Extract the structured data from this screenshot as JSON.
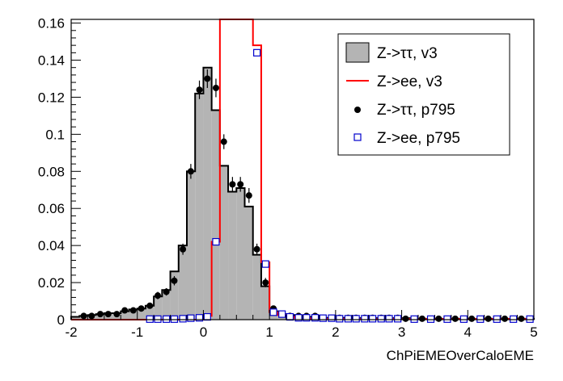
{
  "chart_data": {
    "type": "histogram",
    "xlabel": "ChPiEMEOverCaloEME",
    "ylabel": "",
    "xlim": [
      -2,
      5
    ],
    "ylim": [
      0,
      0.162
    ],
    "x_ticks": [
      -2,
      -1,
      0,
      1,
      2,
      3,
      4,
      5
    ],
    "x_tick_labels": [
      "-2",
      "-1",
      "0",
      "1",
      "2",
      "3",
      "4",
      "5"
    ],
    "y_ticks": [
      0,
      0.02,
      0.04,
      0.06,
      0.08,
      0.1,
      0.12,
      0.14,
      0.16
    ],
    "y_tick_labels": [
      "0",
      "0.02",
      "0.04",
      "0.06",
      "0.08",
      "0.1",
      "0.12",
      "0.14",
      "0.16"
    ],
    "bin_edges": [
      -2.0,
      -1.875,
      -1.75,
      -1.625,
      -1.5,
      -1.375,
      -1.25,
      -1.125,
      -1.0,
      -0.875,
      -0.75,
      -0.625,
      -0.5,
      -0.375,
      -0.25,
      -0.125,
      0.0,
      0.125,
      0.25,
      0.375,
      0.5,
      0.625,
      0.75,
      0.875,
      1.0,
      1.125,
      1.25,
      1.375,
      1.5,
      1.625,
      1.75,
      1.875,
      2.0,
      2.125,
      2.25,
      2.375,
      2.5,
      2.625,
      2.75,
      2.875,
      3.0,
      3.125,
      3.25,
      3.375,
      3.5,
      3.625,
      3.75,
      3.875,
      4.0,
      4.125,
      4.25,
      4.375,
      4.5,
      4.625,
      4.75,
      4.875,
      5.0
    ],
    "legend_position": "top-right",
    "series": [
      {
        "name": "Z->ττ, v3",
        "style": "filled-histogram",
        "fill_color": "#b4b4b4",
        "line_color": "#000000",
        "values": [
          0.0015,
          0.002,
          0.0025,
          0.003,
          0.0035,
          0.0035,
          0.0045,
          0.0055,
          0.006,
          0.0075,
          0.0125,
          0.016,
          0.026,
          0.04,
          0.08,
          0.122,
          0.136,
          0.113,
          0.083,
          0.069,
          0.071,
          0.061,
          0.035,
          0.018,
          0.0045,
          0.003,
          0.0025,
          0.002,
          0.0015,
          0.0015,
          0.001,
          0.001,
          0.001,
          0.0008,
          0.0008,
          0.0008,
          0.0008,
          0.0008,
          0.0008,
          0.0008,
          0.0008,
          0.0005,
          0.0005,
          0.0005,
          0.0005,
          0.0005,
          0.0005,
          0.0005,
          0.0005,
          0.0005,
          0.0005,
          0.0005,
          0.0005,
          0.0005,
          0.0005,
          0.0005
        ]
      },
      {
        "name": "Z->ee, v3",
        "style": "line-histogram",
        "line_color": "#ff0000",
        "values": [
          0,
          0,
          0,
          0,
          0,
          0,
          0,
          0,
          0,
          0,
          0,
          0,
          0,
          0,
          0,
          0,
          0.002,
          0.042,
          0.165,
          0.165,
          0.165,
          0.165,
          0.148,
          0.031,
          0.004,
          0.0025,
          0.0015,
          0.001,
          0.0008,
          0.0005,
          0.0005,
          0.0005,
          0.0005,
          0.0003,
          0.0003,
          0.0003,
          0.0003,
          0.0003,
          0.0003,
          0.0003,
          0.0003,
          0.0003,
          0.0003,
          0.0003,
          0.0003,
          0.0003,
          0.0003,
          0.0003,
          0.0003,
          0.0003,
          0.0003,
          0.0003,
          0.0003,
          0.0003,
          0.0003,
          0.0003
        ]
      },
      {
        "name": "Z->ττ, p795",
        "style": "markers-filled-circle",
        "color": "#000000",
        "points": [
          {
            "x": -1.81,
            "y": 0.002,
            "err": 0.001
          },
          {
            "x": -1.69,
            "y": 0.002,
            "err": 0.001
          },
          {
            "x": -1.56,
            "y": 0.003,
            "err": 0.001
          },
          {
            "x": -1.44,
            "y": 0.003,
            "err": 0.001
          },
          {
            "x": -1.31,
            "y": 0.003,
            "err": 0.001
          },
          {
            "x": -1.19,
            "y": 0.005,
            "err": 0.0012
          },
          {
            "x": -1.06,
            "y": 0.005,
            "err": 0.0012
          },
          {
            "x": -0.94,
            "y": 0.006,
            "err": 0.0015
          },
          {
            "x": -0.81,
            "y": 0.0075,
            "err": 0.0015
          },
          {
            "x": -0.69,
            "y": 0.013,
            "err": 0.002
          },
          {
            "x": -0.56,
            "y": 0.015,
            "err": 0.002
          },
          {
            "x": -0.44,
            "y": 0.021,
            "err": 0.0025
          },
          {
            "x": -0.31,
            "y": 0.038,
            "err": 0.003
          },
          {
            "x": -0.19,
            "y": 0.08,
            "err": 0.004
          },
          {
            "x": -0.06,
            "y": 0.124,
            "err": 0.005
          },
          {
            "x": 0.06,
            "y": 0.13,
            "err": 0.005
          },
          {
            "x": 0.19,
            "y": 0.125,
            "err": 0.005
          },
          {
            "x": 0.31,
            "y": 0.096,
            "err": 0.004
          },
          {
            "x": 0.44,
            "y": 0.073,
            "err": 0.004
          },
          {
            "x": 0.56,
            "y": 0.073,
            "err": 0.004
          },
          {
            "x": 0.69,
            "y": 0.067,
            "err": 0.004
          },
          {
            "x": 0.81,
            "y": 0.038,
            "err": 0.003
          },
          {
            "x": 0.94,
            "y": 0.02,
            "err": 0.0025
          },
          {
            "x": 1.06,
            "y": 0.006,
            "err": 0.0015
          },
          {
            "x": 1.19,
            "y": 0.003,
            "err": 0.001
          },
          {
            "x": 1.31,
            "y": 0.002,
            "err": 0.001
          },
          {
            "x": 1.44,
            "y": 0.002,
            "err": 0.001
          },
          {
            "x": 1.56,
            "y": 0.002,
            "err": 0.001
          },
          {
            "x": 1.69,
            "y": 0.002,
            "err": 0.001
          },
          {
            "x": 1.81,
            "y": 0.001,
            "err": 0.0008
          },
          {
            "x": 1.94,
            "y": 0.001,
            "err": 0.0008
          },
          {
            "x": 2.06,
            "y": 0.001,
            "err": 0.0008
          },
          {
            "x": 2.19,
            "y": 0.001,
            "err": 0.0008
          },
          {
            "x": 2.31,
            "y": 0.001,
            "err": 0.0008
          },
          {
            "x": 2.44,
            "y": 0.001,
            "err": 0.0008
          },
          {
            "x": 2.56,
            "y": 0.001,
            "err": 0.0008
          },
          {
            "x": 2.69,
            "y": 0.001,
            "err": 0.0008
          },
          {
            "x": 2.81,
            "y": 0.001,
            "err": 0.0008
          },
          {
            "x": 2.94,
            "y": 0.001,
            "err": 0.0008
          },
          {
            "x": 3.06,
            "y": 0.0005,
            "err": 0.0006
          },
          {
            "x": 3.31,
            "y": 0.0005,
            "err": 0.0006
          },
          {
            "x": 3.56,
            "y": 0.0005,
            "err": 0.0006
          },
          {
            "x": 3.81,
            "y": 0.0005,
            "err": 0.0006
          },
          {
            "x": 4.06,
            "y": 0.0005,
            "err": 0.0006
          },
          {
            "x": 4.31,
            "y": 0.0005,
            "err": 0.0006
          },
          {
            "x": 4.56,
            "y": 0.0005,
            "err": 0.0006
          },
          {
            "x": 4.81,
            "y": 0.0005,
            "err": 0.0006
          }
        ]
      },
      {
        "name": "Z->ee, p795",
        "style": "markers-open-square",
        "color": "#0000cc",
        "points": [
          {
            "x": -0.81,
            "y": 0.0003
          },
          {
            "x": -0.69,
            "y": 0.0003
          },
          {
            "x": -0.56,
            "y": 0.0003
          },
          {
            "x": -0.44,
            "y": 0.0003
          },
          {
            "x": -0.31,
            "y": 0.0005
          },
          {
            "x": -0.19,
            "y": 0.0008
          },
          {
            "x": -0.06,
            "y": 0.001
          },
          {
            "x": 0.06,
            "y": 0.0015
          },
          {
            "x": 0.19,
            "y": 0.042
          },
          {
            "x": 0.81,
            "y": 0.144
          },
          {
            "x": 0.94,
            "y": 0.03
          },
          {
            "x": 1.06,
            "y": 0.004
          },
          {
            "x": 1.19,
            "y": 0.003
          },
          {
            "x": 1.31,
            "y": 0.0015
          },
          {
            "x": 1.44,
            "y": 0.001
          },
          {
            "x": 1.56,
            "y": 0.001
          },
          {
            "x": 1.69,
            "y": 0.001
          },
          {
            "x": 1.81,
            "y": 0.0008
          },
          {
            "x": 1.94,
            "y": 0.0008
          },
          {
            "x": 2.06,
            "y": 0.0005
          },
          {
            "x": 2.19,
            "y": 0.0005
          },
          {
            "x": 2.31,
            "y": 0.0005
          },
          {
            "x": 2.44,
            "y": 0.0005
          },
          {
            "x": 2.56,
            "y": 0.0005
          },
          {
            "x": 2.69,
            "y": 0.0005
          },
          {
            "x": 2.81,
            "y": 0.0005
          },
          {
            "x": 2.94,
            "y": 0.0005
          },
          {
            "x": 3.19,
            "y": 0.0003
          },
          {
            "x": 3.44,
            "y": 0.0003
          },
          {
            "x": 3.69,
            "y": 0.0003
          },
          {
            "x": 3.94,
            "y": 0.0003
          },
          {
            "x": 4.19,
            "y": 0.0003
          },
          {
            "x": 4.44,
            "y": 0.0003
          },
          {
            "x": 4.69,
            "y": 0.0003
          },
          {
            "x": 4.94,
            "y": 0.0003
          }
        ]
      }
    ],
    "legend": [
      {
        "label": "Z->ττ, v3",
        "symbol": "filled-box"
      },
      {
        "label": "Z->ee, v3",
        "symbol": "red-line"
      },
      {
        "label": "Z->ττ, p795",
        "symbol": "filled-circle"
      },
      {
        "label": "Z->ee, p795",
        "symbol": "open-square"
      }
    ]
  }
}
